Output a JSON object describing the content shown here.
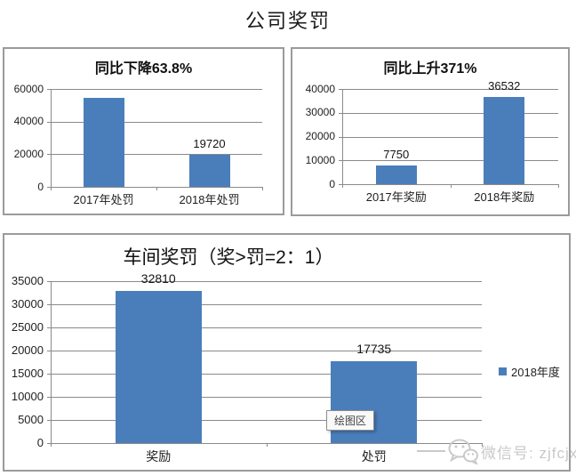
{
  "page": {
    "title": "公司奖罚"
  },
  "chart_data": [
    {
      "type": "bar",
      "title": "同比下降63.8%",
      "categories": [
        "2017年处罚",
        "2018年处罚"
      ],
      "values": [
        54475,
        19720
      ],
      "labels": [
        "",
        "19720"
      ],
      "ylim": [
        0,
        60000
      ],
      "yticks": [
        0,
        20000,
        40000,
        60000
      ],
      "grid": true,
      "legend_position": "none"
    },
    {
      "type": "bar",
      "title": "同比上升371%",
      "categories": [
        "2017年奖励",
        "2018年奖励"
      ],
      "values": [
        7750,
        36532
      ],
      "labels": [
        "7750",
        "36532"
      ],
      "ylim": [
        0,
        40000
      ],
      "yticks": [
        0,
        10000,
        20000,
        30000,
        40000
      ],
      "grid": true,
      "legend_position": "none"
    },
    {
      "type": "bar",
      "title": "车间奖罚（奖>罚=2：1）",
      "categories": [
        "奖励",
        "处罚"
      ],
      "values": [
        32810,
        17735
      ],
      "labels": [
        "32810",
        "17735"
      ],
      "ylim": [
        0,
        35000
      ],
      "yticks": [
        0,
        5000,
        10000,
        15000,
        20000,
        25000,
        30000,
        35000
      ],
      "grid": true,
      "legend": "2018年度",
      "legend_position": "right",
      "tooltip": "绘图区"
    }
  ],
  "watermark": {
    "text": "微信号: zjfcjx",
    "icon": "wechat-icon"
  },
  "colors": {
    "bar": "#4A7EBB",
    "gridline": "#8a8a8a",
    "box_border": "#9b9b9b",
    "text": "#1a1a1a",
    "watermark": "#c9c9c9",
    "tooltip_border": "#8c8c8c"
  }
}
